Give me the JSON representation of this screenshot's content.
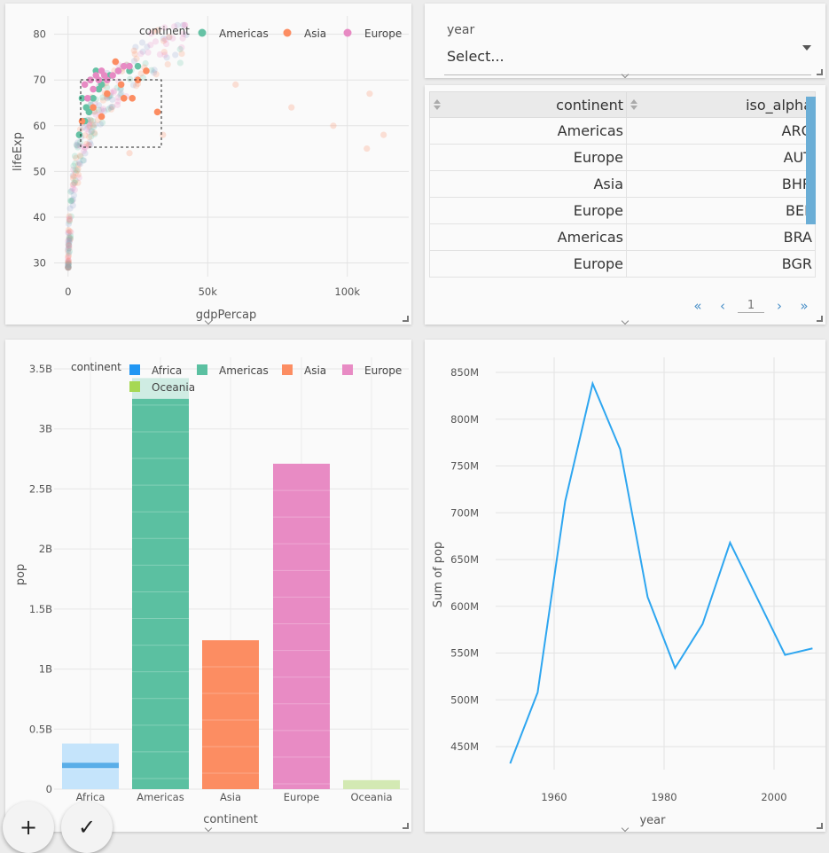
{
  "scatter": {
    "legend_title": "continent",
    "legend": [
      {
        "label": "Americas",
        "color": "#66c2a5"
      },
      {
        "label": "Asia",
        "color": "#fc8d62"
      },
      {
        "label": "Europe",
        "color": "#e78ac3"
      }
    ],
    "xlabel": "gdpPercap",
    "ylabel": "lifeExp",
    "xticks": [
      "0",
      "50k",
      "100k"
    ],
    "yticks": [
      "30",
      "40",
      "50",
      "60",
      "70",
      "80"
    ]
  },
  "filter": {
    "label": "year",
    "placeholder": "Select..."
  },
  "table": {
    "headers": [
      "continent",
      "iso_alpha"
    ],
    "rows": [
      [
        "Americas",
        "ARG"
      ],
      [
        "Europe",
        "AUT"
      ],
      [
        "Asia",
        "BHR"
      ],
      [
        "Europe",
        "BEL"
      ],
      [
        "Americas",
        "BRA"
      ],
      [
        "Europe",
        "BGR"
      ]
    ],
    "pager": {
      "first": "«",
      "prev": "‹",
      "page": "1",
      "next": "›",
      "last": "»"
    }
  },
  "bar": {
    "legend_title": "continent",
    "legend": [
      {
        "label": "Africa",
        "color": "#2196f3"
      },
      {
        "label": "Americas",
        "color": "#5bc0a1"
      },
      {
        "label": "Asia",
        "color": "#fc8d62"
      },
      {
        "label": "Europe",
        "color": "#e88bc4"
      },
      {
        "label": "Oceania",
        "color": "#a6d854"
      }
    ],
    "xlabel": "continent",
    "ylabel": "pop",
    "yticks": [
      "0",
      "0.5B",
      "1B",
      "1.5B",
      "2B",
      "2.5B",
      "3B",
      "3.5B"
    ]
  },
  "line": {
    "xlabel": "year",
    "ylabel": "Sum of pop",
    "xticks": [
      "1960",
      "1980",
      "2000"
    ],
    "yticks": [
      "450M",
      "500M",
      "550M",
      "600M",
      "650M",
      "700M",
      "750M",
      "800M",
      "850M"
    ],
    "color": "#2ea6f0"
  },
  "fab": {
    "add": "+",
    "confirm": "✓"
  },
  "chart_data": [
    {
      "type": "scatter",
      "xlabel": "gdpPercap",
      "ylabel": "lifeExp",
      "xlim": [
        -5000,
        122000
      ],
      "ylim": [
        27,
        84
      ],
      "legend_title": "continent",
      "series": [
        {
          "name": "Americas",
          "x": [
            4000,
            6000,
            7500,
            9000,
            12000,
            15000,
            18000,
            22000,
            5000,
            8000,
            6500,
            11000,
            25000,
            10000
          ],
          "y": [
            58,
            61,
            63,
            66,
            69,
            71,
            72,
            72,
            66,
            70,
            64,
            68,
            73,
            72
          ]
        },
        {
          "name": "Asia",
          "x": [
            5000,
            12000,
            20000,
            23000,
            25000,
            28000,
            32000,
            14000,
            9000,
            19000,
            17000
          ],
          "y": [
            61,
            62,
            66,
            66,
            70,
            72,
            63,
            67,
            64,
            69,
            74
          ]
        },
        {
          "name": "Europe",
          "x": [
            6000,
            8000,
            10000,
            12000,
            14000,
            16000,
            18000,
            20000,
            22000,
            7000,
            9000,
            11000,
            13000
          ],
          "y": [
            69,
            70,
            71,
            72,
            70,
            71,
            72,
            73,
            73,
            66,
            68,
            70,
            71
          ]
        }
      ]
    },
    {
      "type": "bar",
      "xlabel": "continent",
      "ylabel": "pop",
      "categories": [
        "Africa",
        "Americas",
        "Asia",
        "Europe",
        "Oceania"
      ],
      "values": [
        380000000,
        3420000000,
        1240000000,
        2710000000,
        75000000
      ],
      "ylim": [
        0,
        3500000000
      ]
    },
    {
      "type": "line",
      "xlabel": "year",
      "ylabel": "Sum of pop",
      "x": [
        1952,
        1957,
        1962,
        1967,
        1972,
        1977,
        1982,
        1987,
        1992,
        1997,
        2002,
        2007
      ],
      "y": [
        432000000,
        508000000,
        712000000,
        838000000,
        768000000,
        610000000,
        534000000,
        581000000,
        668000000,
        608000000,
        548000000,
        555000000
      ],
      "xlim": [
        1945,
        2010
      ],
      "ylim": [
        425000000,
        870000000
      ]
    }
  ]
}
